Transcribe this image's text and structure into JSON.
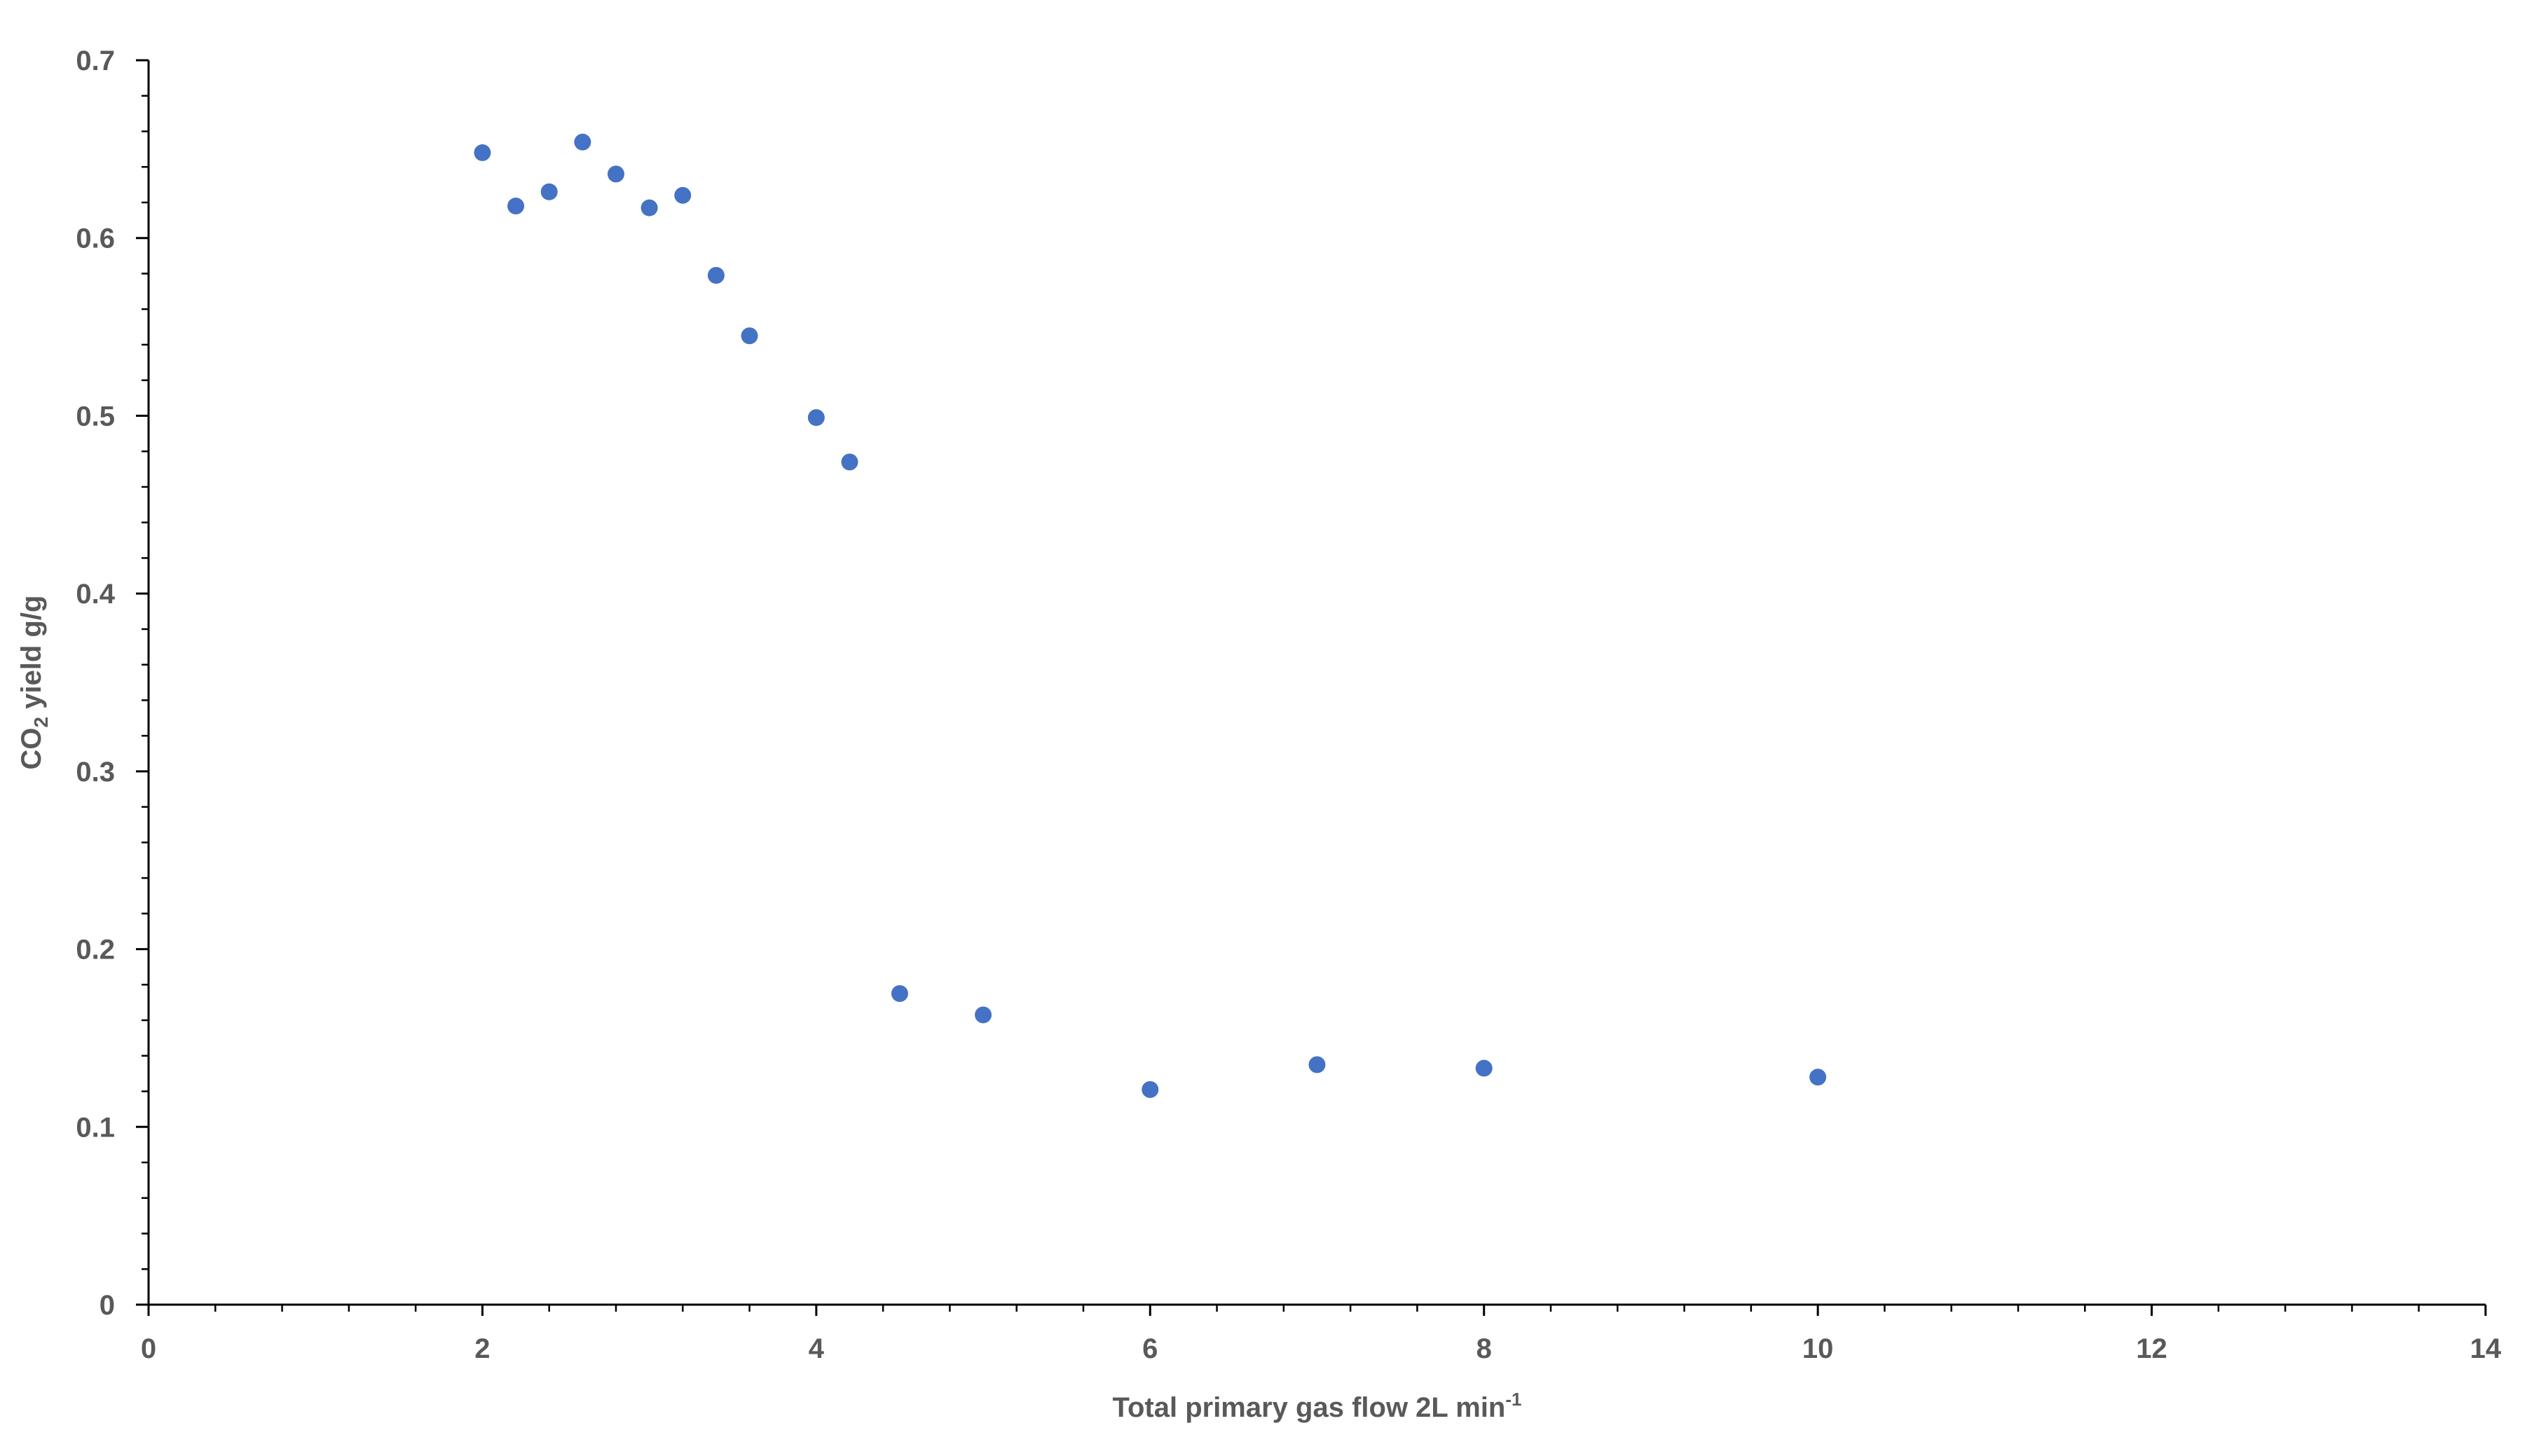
{
  "chart_data": {
    "type": "scatter",
    "xlabel": {
      "main": "Total primary gas flow 2L min",
      "superscript": "-1"
    },
    "ylabel": {
      "prefix": "CO",
      "subscript": "2",
      "suffix": " yield g/g"
    },
    "xlim": [
      0,
      14
    ],
    "ylim": [
      0,
      0.7
    ],
    "x_ticks": [
      "0",
      "2",
      "4",
      "6",
      "8",
      "10",
      "12",
      "14"
    ],
    "y_ticks": [
      "0",
      "0.1",
      "0.2",
      "0.3",
      "0.4",
      "0.5",
      "0.6",
      "0.7"
    ],
    "grid": false,
    "legend": "none",
    "marker_color": "#4472C4",
    "axis_color": "#000000",
    "label_color": "#595959",
    "points": [
      {
        "x": 2.0,
        "y": 0.648
      },
      {
        "x": 2.2,
        "y": 0.618
      },
      {
        "x": 2.4,
        "y": 0.626
      },
      {
        "x": 2.6,
        "y": 0.654
      },
      {
        "x": 2.8,
        "y": 0.636
      },
      {
        "x": 3.0,
        "y": 0.617
      },
      {
        "x": 3.2,
        "y": 0.624
      },
      {
        "x": 3.4,
        "y": 0.579
      },
      {
        "x": 3.6,
        "y": 0.545
      },
      {
        "x": 4.0,
        "y": 0.499
      },
      {
        "x": 4.2,
        "y": 0.474
      },
      {
        "x": 4.5,
        "y": 0.175
      },
      {
        "x": 5.0,
        "y": 0.163
      },
      {
        "x": 6.0,
        "y": 0.121
      },
      {
        "x": 7.0,
        "y": 0.135
      },
      {
        "x": 8.0,
        "y": 0.133
      },
      {
        "x": 10.0,
        "y": 0.128
      }
    ]
  }
}
